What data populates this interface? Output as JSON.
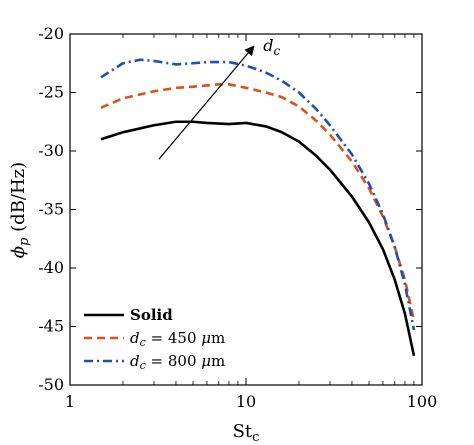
{
  "chart_data": {
    "type": "line",
    "xlabel": "St",
    "xlabel_sub": "c",
    "ylabel": "ϕ",
    "ylabel_sub": "p",
    "ylabel_unit": " (dB/Hz)",
    "xscale": "log",
    "xlim": [
      1,
      100
    ],
    "ylim": [
      -50,
      -20
    ],
    "xticks": [
      1,
      10,
      100
    ],
    "xtick_labels": [
      "1",
      "10",
      "100"
    ],
    "yticks": [
      -50,
      -45,
      -40,
      -35,
      -30,
      -25,
      -20
    ],
    "ytick_labels": [
      "-50",
      "-45",
      "-40",
      "-35",
      "-30",
      "-25",
      "-20"
    ],
    "grid": false,
    "legend_position": "bottom-left",
    "annotation": {
      "text": "d",
      "sub": "c",
      "arrow_from": [
        3.2,
        -30.7
      ],
      "arrow_to": [
        11.0,
        -21.1
      ]
    },
    "series": [
      {
        "name": "Solid",
        "color": "#000000",
        "style": "solid",
        "x": [
          1.5,
          2,
          3,
          4,
          5,
          6,
          8,
          10,
          13,
          16,
          20,
          25,
          30,
          40,
          50,
          60,
          70,
          80,
          90
        ],
        "y": [
          -29.0,
          -28.4,
          -27.8,
          -27.5,
          -27.5,
          -27.6,
          -27.7,
          -27.6,
          -27.9,
          -28.4,
          -29.2,
          -30.4,
          -31.6,
          -33.9,
          -36.1,
          -38.4,
          -41.0,
          -43.9,
          -47.5
        ]
      },
      {
        "name": "d_c = 450 μm",
        "legend": {
          "pre": "d",
          "sub": "c",
          "post": " = 450 ",
          "mu": "μ",
          "unit": "m"
        },
        "color": "#D95319",
        "style": "dash",
        "x": [
          1.5,
          2,
          3,
          4,
          5,
          6,
          7,
          8,
          10,
          13,
          16,
          20,
          25,
          30,
          40,
          50,
          60,
          70,
          80,
          90
        ],
        "y": [
          -26.3,
          -25.5,
          -24.9,
          -24.6,
          -24.5,
          -24.4,
          -24.3,
          -24.3,
          -24.6,
          -25.0,
          -25.4,
          -26.2,
          -27.4,
          -28.6,
          -30.9,
          -33.2,
          -35.6,
          -38.2,
          -41.0,
          -44.5
        ]
      },
      {
        "name": "d_c = 800 μm",
        "legend": {
          "pre": "d",
          "sub": "c",
          "post": " = 800 ",
          "mu": "μ",
          "unit": "m"
        },
        "color": "#1F4FB0",
        "style": "dashdot",
        "x": [
          1.5,
          2,
          2.5,
          3,
          4,
          5,
          6,
          8,
          10,
          13,
          16,
          20,
          25,
          30,
          40,
          50,
          60,
          70,
          80,
          90
        ],
        "y": [
          -23.7,
          -22.5,
          -22.2,
          -22.3,
          -22.6,
          -22.5,
          -22.4,
          -22.4,
          -22.7,
          -23.3,
          -24.0,
          -25.0,
          -26.4,
          -27.8,
          -30.3,
          -32.8,
          -35.4,
          -38.2,
          -41.4,
          -45.3
        ]
      }
    ]
  }
}
